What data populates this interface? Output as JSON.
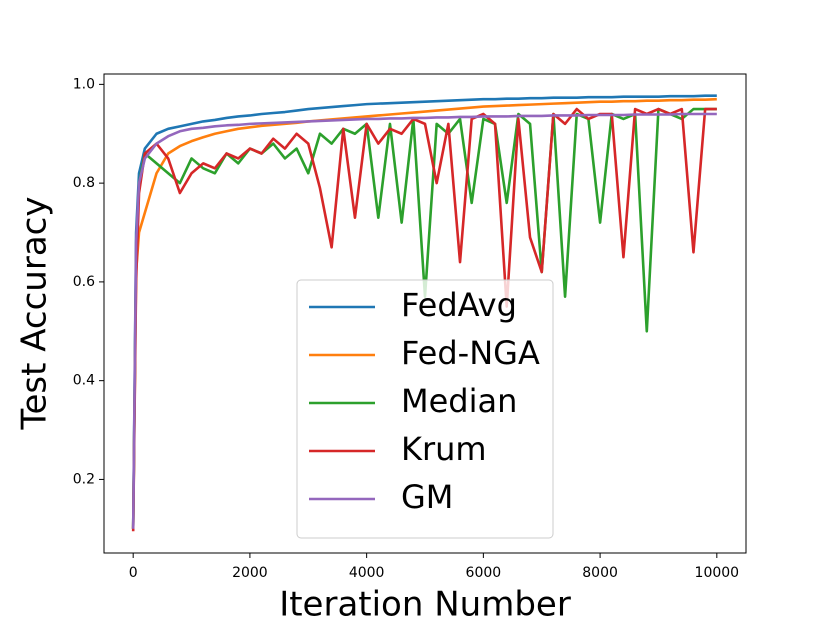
{
  "chart_data": {
    "type": "line",
    "xlabel": "Iteration Number",
    "ylabel": "Test Accuracy",
    "x": [
      0,
      50,
      100,
      200,
      400,
      600,
      800,
      1000,
      1200,
      1400,
      1600,
      1800,
      2000,
      2200,
      2400,
      2600,
      2800,
      3000,
      3200,
      3400,
      3600,
      3800,
      4000,
      4200,
      4400,
      4600,
      4800,
      5000,
      5200,
      5400,
      5600,
      5800,
      6000,
      6200,
      6400,
      6600,
      6800,
      7000,
      7200,
      7400,
      7600,
      7800,
      8000,
      8200,
      8400,
      8600,
      8800,
      9000,
      9200,
      9400,
      9600,
      9800,
      10000
    ],
    "series": [
      {
        "name": "FedAvg",
        "color": "#1f77b4",
        "values": [
          0.1,
          0.7,
          0.82,
          0.87,
          0.9,
          0.91,
          0.915,
          0.92,
          0.925,
          0.928,
          0.932,
          0.935,
          0.937,
          0.94,
          0.942,
          0.944,
          0.947,
          0.95,
          0.952,
          0.954,
          0.956,
          0.958,
          0.96,
          0.961,
          0.962,
          0.963,
          0.964,
          0.965,
          0.966,
          0.967,
          0.968,
          0.969,
          0.97,
          0.97,
          0.971,
          0.971,
          0.972,
          0.972,
          0.973,
          0.973,
          0.973,
          0.974,
          0.974,
          0.974,
          0.975,
          0.975,
          0.975,
          0.975,
          0.976,
          0.976,
          0.976,
          0.977,
          0.977
        ]
      },
      {
        "name": "Fed-NGA",
        "color": "#ff7f0e",
        "values": [
          0.1,
          0.62,
          0.7,
          0.74,
          0.82,
          0.86,
          0.875,
          0.885,
          0.893,
          0.9,
          0.905,
          0.91,
          0.913,
          0.916,
          0.918,
          0.92,
          0.922,
          0.925,
          0.927,
          0.929,
          0.931,
          0.933,
          0.935,
          0.937,
          0.939,
          0.941,
          0.943,
          0.945,
          0.947,
          0.949,
          0.951,
          0.953,
          0.955,
          0.956,
          0.957,
          0.958,
          0.959,
          0.96,
          0.961,
          0.962,
          0.963,
          0.964,
          0.965,
          0.965,
          0.966,
          0.966,
          0.967,
          0.967,
          0.968,
          0.968,
          0.969,
          0.969,
          0.97
        ]
      },
      {
        "name": "Median",
        "color": "#2ca02c",
        "values": [
          0.1,
          0.65,
          0.8,
          0.86,
          0.84,
          0.82,
          0.8,
          0.85,
          0.83,
          0.82,
          0.86,
          0.84,
          0.87,
          0.86,
          0.88,
          0.85,
          0.87,
          0.82,
          0.9,
          0.88,
          0.91,
          0.9,
          0.92,
          0.73,
          0.92,
          0.72,
          0.93,
          0.57,
          0.92,
          0.9,
          0.93,
          0.76,
          0.93,
          0.92,
          0.76,
          0.94,
          0.92,
          0.62,
          0.94,
          0.57,
          0.94,
          0.93,
          0.72,
          0.94,
          0.93,
          0.94,
          0.5,
          0.95,
          0.94,
          0.93,
          0.95,
          0.95,
          0.95
        ]
      },
      {
        "name": "Krum",
        "color": "#d62728",
        "values": [
          0.095,
          0.6,
          0.78,
          0.86,
          0.88,
          0.85,
          0.78,
          0.82,
          0.84,
          0.83,
          0.86,
          0.85,
          0.87,
          0.86,
          0.89,
          0.87,
          0.9,
          0.88,
          0.79,
          0.67,
          0.91,
          0.73,
          0.92,
          0.88,
          0.91,
          0.9,
          0.93,
          0.92,
          0.8,
          0.92,
          0.64,
          0.93,
          0.94,
          0.92,
          0.55,
          0.93,
          0.69,
          0.62,
          0.94,
          0.92,
          0.95,
          0.93,
          0.94,
          0.94,
          0.65,
          0.95,
          0.94,
          0.95,
          0.94,
          0.95,
          0.66,
          0.95,
          0.95
        ]
      },
      {
        "name": "GM",
        "color": "#9467bd",
        "values": [
          0.1,
          0.68,
          0.8,
          0.85,
          0.88,
          0.895,
          0.905,
          0.91,
          0.912,
          0.915,
          0.917,
          0.918,
          0.92,
          0.921,
          0.922,
          0.923,
          0.924,
          0.925,
          0.926,
          0.927,
          0.928,
          0.929,
          0.93,
          0.93,
          0.931,
          0.931,
          0.932,
          0.932,
          0.933,
          0.933,
          0.934,
          0.934,
          0.935,
          0.935,
          0.935,
          0.936,
          0.936,
          0.936,
          0.937,
          0.937,
          0.937,
          0.938,
          0.938,
          0.938,
          0.938,
          0.939,
          0.939,
          0.939,
          0.939,
          0.94,
          0.94,
          0.94,
          0.94
        ]
      }
    ],
    "xlim": [
      -500,
      10500
    ],
    "xticks": [
      0,
      2000,
      4000,
      6000,
      8000,
      10000
    ],
    "ylim": [
      0.051,
      1.021
    ],
    "yticks": [
      0.2,
      0.4,
      0.6,
      0.8,
      {
        "value": 1,
        "label": "1.0"
      }
    ],
    "legend": "lower center"
  }
}
